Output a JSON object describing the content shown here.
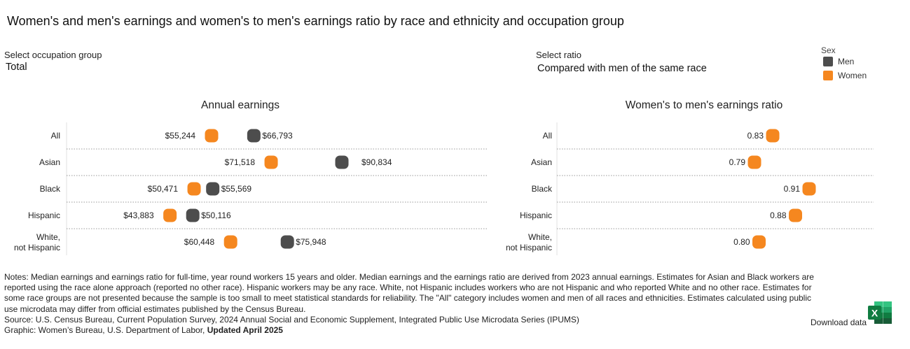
{
  "title": "Women's and men's earnings and women's to men's earnings ratio by race and ethnicity and occupation group",
  "controls": {
    "occupation": {
      "label": "Select occupation group",
      "value": "Total"
    },
    "ratio": {
      "label": "Select ratio",
      "value": "Compared with men of the same race"
    }
  },
  "legend": {
    "title": "Sex",
    "items": [
      {
        "label": "Men",
        "color": "#4d4d4d"
      },
      {
        "label": "Women",
        "color": "#f5871f"
      }
    ]
  },
  "colors": {
    "men": "#4d4d4d",
    "women": "#f5871f",
    "divider": "#9a9a9a"
  },
  "chart_data": [
    {
      "type": "scatter",
      "title": "Annual earnings",
      "categories": [
        "All",
        "Asian",
        "Black",
        "Hispanic",
        "White, not Hispanic"
      ],
      "series": [
        {
          "name": "Women",
          "values": [
            55244,
            71518,
            50471,
            43883,
            60448
          ],
          "labels": [
            "$55,244",
            "$71,518",
            "$50,471",
            "$43,883",
            "$60,448"
          ]
        },
        {
          "name": "Men",
          "values": [
            66793,
            90834,
            55569,
            50116,
            75948
          ],
          "labels": [
            "$66,793",
            "$90,834",
            "$55,569",
            "$50,116",
            "$75,948"
          ]
        }
      ]
    },
    {
      "type": "scatter",
      "title": "Women's to men's earnings ratio",
      "categories": [
        "All",
        "Asian",
        "Black",
        "Hispanic",
        "White, not Hispanic"
      ],
      "series": [
        {
          "name": "Women",
          "values": [
            0.83,
            0.79,
            0.91,
            0.88,
            0.8
          ],
          "labels": [
            "0.83",
            "0.79",
            "0.91",
            "0.88",
            "0.80"
          ]
        }
      ]
    }
  ],
  "notes": {
    "text": "Notes: Median earnings and earnings ratio for full-time, year round workers 15 years and older. Median earnings and the earnings ratio are derived from 2023 annual earnings. Estimates for Asian and Black workers are reported using the race alone approach (reported no other race). Hispanic workers may be any race. White, not Hispanic includes workers who are not Hispanic and who reported White and no other race. Estimates for some race groups are not presented because the sample is too small to meet statistical standards for reliability. The \"All\" category includes women and men of all races and ethnicities. Estimates calculated using public use microdata may differ from official estimates published by the Census Bureau.",
    "source": "Source: U.S. Census Bureau, Current Population Survey, 2024 Annual Social and Economic Supplement, Integrated Public Use Microdata Series (IPUMS)",
    "graphic": "Graphic: Women’s Bureau, U.S. Department of Labor,",
    "updated": "Updated April 2025"
  },
  "download": {
    "label": "Download data",
    "icon": "excel-icon"
  }
}
